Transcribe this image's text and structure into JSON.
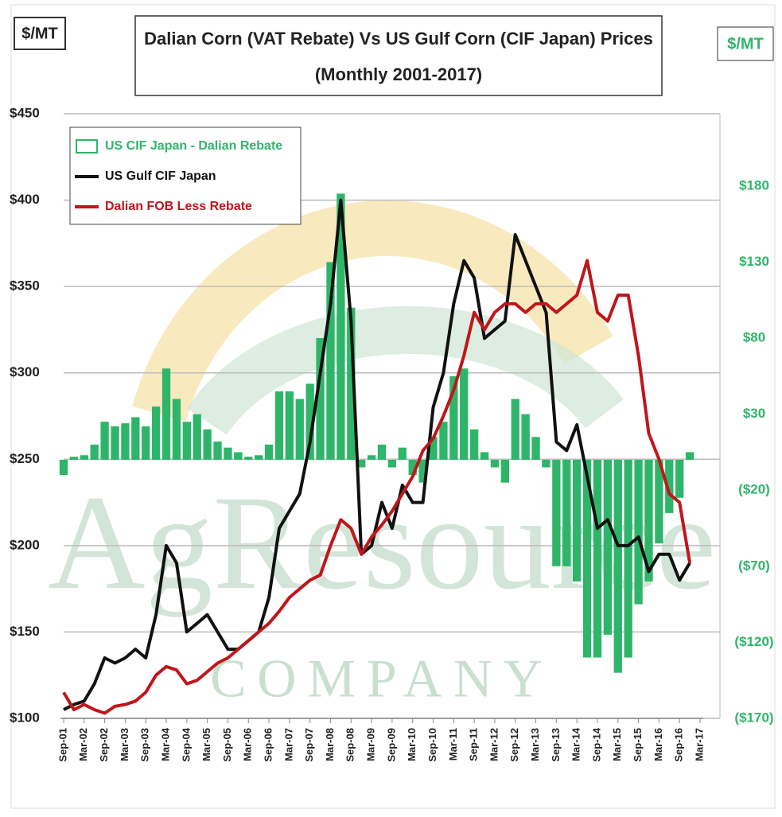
{
  "chart_data": {
    "type": "bar-line",
    "title": "Dalian Corn (VAT Rebate) Vs US Gulf Corn (CIF Japan) Prices",
    "subtitle": "(Monthly 2001-2017)",
    "y_label": "$/MT",
    "y2_label": "$/MT",
    "watermark": "AgResource",
    "watermark_sub": "COMPANY",
    "categories": [
      "Sep-01",
      null,
      "Mar-02",
      null,
      "Sep-02",
      null,
      "Mar-03",
      null,
      "Sep-03",
      null,
      "Mar-04",
      null,
      "Sep-04",
      null,
      "Mar-05",
      null,
      "Sep-05",
      null,
      "Mar-06",
      null,
      "Sep-06",
      null,
      "Mar-07",
      null,
      "Sep-07",
      null,
      "Mar-08",
      null,
      "Sep-08",
      null,
      "Mar-09",
      null,
      "Sep-09",
      null,
      "Mar-10",
      null,
      "Sep-10",
      null,
      "Mar-11",
      null,
      "Sep-11",
      null,
      "Mar-12",
      null,
      "Sep-12",
      null,
      "Mar-13",
      null,
      "Sep-13",
      null,
      "Mar-14",
      null,
      "Sep-14",
      null,
      "Mar-15",
      null,
      "Sep-15",
      null,
      "Mar-16",
      null,
      "Sep-16",
      null,
      "Mar-17"
    ],
    "series": [
      {
        "name": "US CIF Japan - Dalian Rebate",
        "type": "bar",
        "axis": "y2",
        "color": "#2fb56a",
        "values": [
          -10,
          2,
          3,
          10,
          25,
          22,
          24,
          28,
          22,
          35,
          60,
          40,
          25,
          30,
          20,
          12,
          8,
          5,
          2,
          3,
          10,
          45,
          45,
          40,
          50,
          80,
          130,
          175,
          100,
          -5,
          3,
          10,
          -5,
          8,
          -10,
          -15,
          15,
          25,
          55,
          60,
          20,
          5,
          -5,
          -15,
          40,
          30,
          15,
          -5,
          -70,
          -70,
          -80,
          -130,
          -130,
          -115,
          -140,
          -130,
          -95,
          -80,
          -55,
          -35,
          -25,
          5,
          null
        ]
      },
      {
        "name": "US Gulf CIF Japan",
        "type": "line",
        "color": "#111111",
        "values": [
          105,
          108,
          110,
          120,
          135,
          132,
          135,
          140,
          135,
          160,
          200,
          190,
          150,
          155,
          160,
          150,
          140,
          140,
          145,
          150,
          170,
          210,
          220,
          230,
          260,
          300,
          340,
          400,
          330,
          195,
          200,
          225,
          210,
          235,
          225,
          225,
          280,
          300,
          340,
          365,
          355,
          320,
          325,
          330,
          380,
          365,
          350,
          335,
          260,
          255,
          270,
          240,
          210,
          215,
          200,
          200,
          205,
          185,
          195,
          195,
          180,
          190,
          null
        ]
      },
      {
        "name": "Dalian FOB Less Rebate",
        "type": "line",
        "color": "#c0161b",
        "values": [
          115,
          105,
          108,
          105,
          103,
          107,
          108,
          110,
          115,
          125,
          130,
          128,
          120,
          122,
          127,
          132,
          135,
          140,
          145,
          150,
          155,
          162,
          170,
          175,
          180,
          183,
          200,
          215,
          210,
          195,
          205,
          212,
          220,
          230,
          240,
          255,
          262,
          275,
          290,
          310,
          335,
          325,
          335,
          340,
          340,
          335,
          340,
          340,
          335,
          340,
          345,
          365,
          335,
          330,
          345,
          345,
          310,
          265,
          250,
          230,
          225,
          190,
          null
        ]
      }
    ],
    "ylim": [
      100,
      450
    ],
    "yticks": [
      {
        "value": 100,
        "label": "$100"
      },
      {
        "value": 150,
        "label": "$150"
      },
      {
        "value": 200,
        "label": "$200"
      },
      {
        "value": 250,
        "label": "$250"
      },
      {
        "value": 300,
        "label": "$300"
      },
      {
        "value": 350,
        "label": "$350"
      },
      {
        "value": 400,
        "label": "$400"
      },
      {
        "value": 450,
        "label": "$450"
      }
    ],
    "y2lim": [
      -170,
      227.5
    ],
    "y2ticks": [
      {
        "value": -170,
        "label": "($170)"
      },
      {
        "value": -120,
        "label": "($120)"
      },
      {
        "value": -70,
        "label": "($70)"
      },
      {
        "value": -20,
        "label": "($20)"
      },
      {
        "value": 30,
        "label": "$30"
      },
      {
        "value": 80,
        "label": "$80"
      },
      {
        "value": 130,
        "label": "$130"
      },
      {
        "value": 180,
        "label": "$180"
      }
    ],
    "grid": true,
    "legend": "upper left"
  }
}
